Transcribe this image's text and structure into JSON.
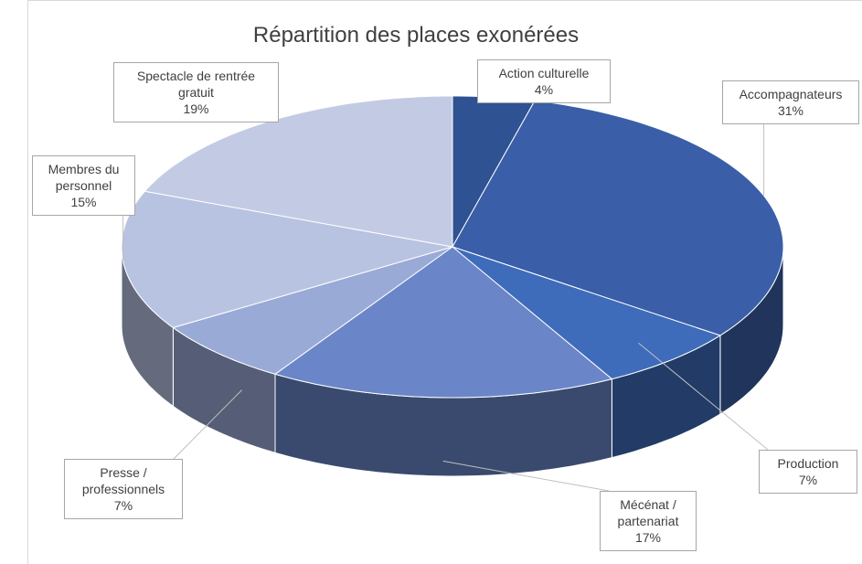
{
  "chart_data": {
    "type": "pie3d",
    "title": "Répartition des places exonérées",
    "categories": [
      "Action culturelle",
      "Accompagnateurs",
      "Production",
      "Mécénat / partenariat",
      "Presse / professionnels",
      "Membres du personnel",
      "Spectacle de rentrée gratuit"
    ],
    "values": [
      4,
      31,
      7,
      17,
      7,
      15,
      19
    ],
    "value_labels": [
      "4%",
      "31%",
      "7%",
      "17%",
      "7%",
      "15%",
      "19%"
    ],
    "colors": [
      "#2f5293",
      "#3a5ea8",
      "#3e6cbb",
      "#6a86c8",
      "#9aaad7",
      "#b8c3e1",
      "#c3cbe4"
    ]
  }
}
